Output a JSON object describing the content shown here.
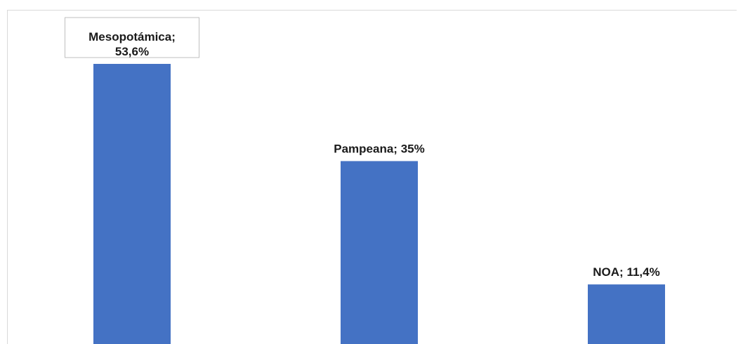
{
  "chart_data": {
    "type": "bar",
    "categories": [
      "Mesopotámica",
      "Pampeana",
      "NOA"
    ],
    "values": [
      53.6,
      35,
      11.4
    ],
    "data_labels": [
      [
        "Mesopotámica;",
        "53,6%"
      ],
      [
        "Pampeana; 35%"
      ],
      [
        "NOA; 11,4%"
      ]
    ],
    "title": "",
    "xlabel": "",
    "ylabel": "",
    "grid": false,
    "legend": "none",
    "bar_color": "#4472C4",
    "frame_color": "#D9D9D9",
    "highlight_label_index": 0
  }
}
